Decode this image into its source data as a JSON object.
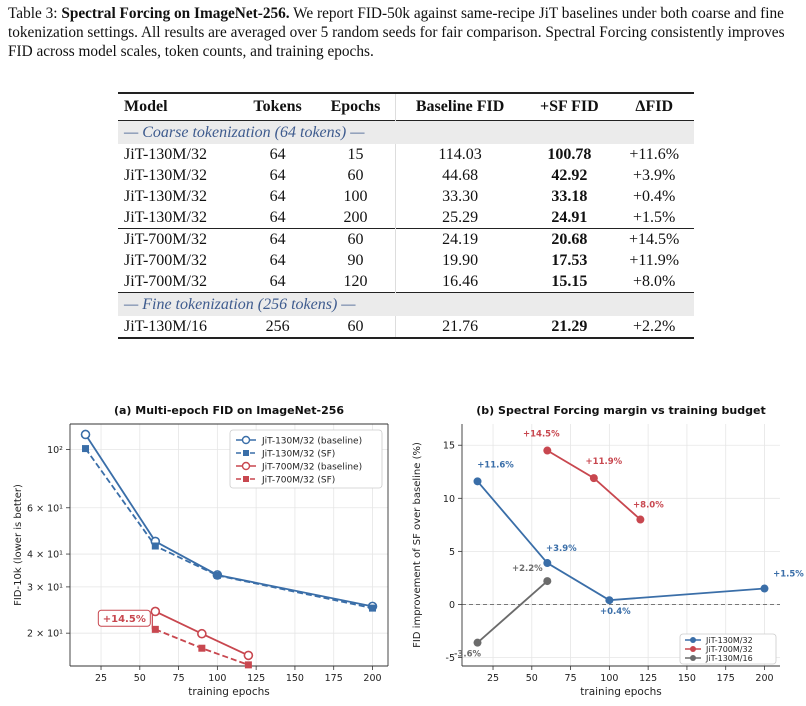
{
  "caption": {
    "label": "Table 3:",
    "title": "Spectral Forcing on ImageNet-256.",
    "body": "We report FID-50k against same-recipe JiT baselines under both coarse and fine tokenization settings. All results are averaged over 5 random seeds for fair comparison. Spectral Forcing consistently improves FID across model scales, token counts, and training epochs."
  },
  "table": {
    "headers": [
      "Model",
      "Tokens",
      "Epochs",
      "Baseline FID",
      "+SF FID",
      "ΔFID"
    ],
    "section_coarse": "— Coarse tokenization (64 tokens) —",
    "section_fine": "— Fine tokenization (256 tokens) —",
    "coarse_a": [
      [
        "JiT-130M/32",
        "64",
        "15",
        "114.03",
        "100.78",
        "+11.6%"
      ],
      [
        "JiT-130M/32",
        "64",
        "60",
        "44.68",
        "42.92",
        "+3.9%"
      ],
      [
        "JiT-130M/32",
        "64",
        "100",
        "33.30",
        "33.18",
        "+0.4%"
      ],
      [
        "JiT-130M/32",
        "64",
        "200",
        "25.29",
        "24.91",
        "+1.5%"
      ]
    ],
    "coarse_b": [
      [
        "JiT-700M/32",
        "64",
        "60",
        "24.19",
        "20.68",
        "+14.5%"
      ],
      [
        "JiT-700M/32",
        "64",
        "90",
        "19.90",
        "17.53",
        "+11.9%"
      ],
      [
        "JiT-700M/32",
        "64",
        "120",
        "16.46",
        "15.15",
        "+8.0%"
      ]
    ],
    "fine": [
      [
        "JiT-130M/16",
        "256",
        "60",
        "21.76",
        "21.29",
        "+2.2%"
      ]
    ]
  },
  "chart_data": [
    {
      "type": "line",
      "title": "(a) Multi-epoch FID on ImageNet-256",
      "xlabel": "training epochs",
      "ylabel": "FID-10k (lower is better)",
      "yscale": "log",
      "xlim": [
        5,
        210
      ],
      "ylim": [
        15,
        125
      ],
      "xticks": [
        25,
        50,
        75,
        100,
        125,
        150,
        175,
        200
      ],
      "yticks": [
        {
          "value": 100,
          "label": "10²"
        },
        {
          "value": 60,
          "label": "6 × 10¹"
        },
        {
          "value": 40,
          "label": "4 × 10¹"
        },
        {
          "value": 30,
          "label": "3 × 10¹"
        },
        {
          "value": 20,
          "label": "2 × 10¹"
        }
      ],
      "grid": true,
      "legend": "top-right",
      "series": [
        {
          "name": "JiT-130M/32 (baseline)",
          "color": "#3a6ea8",
          "marker": "circle-open",
          "dash": false,
          "x": [
            15,
            60,
            100,
            200
          ],
          "y": [
            114.03,
            44.68,
            33.3,
            25.29
          ]
        },
        {
          "name": "JiT-130M/32 (SF)",
          "color": "#3a6ea8",
          "marker": "square",
          "dash": true,
          "x": [
            15,
            60,
            100,
            200
          ],
          "y": [
            100.78,
            42.92,
            33.18,
            24.91
          ]
        },
        {
          "name": "JiT-700M/32 (baseline)",
          "color": "#c8474f",
          "marker": "circle-open",
          "dash": false,
          "x": [
            60,
            90,
            120
          ],
          "y": [
            24.19,
            19.9,
            16.46
          ]
        },
        {
          "name": "JiT-700M/32 (SF)",
          "color": "#c8474f",
          "marker": "square",
          "dash": true,
          "x": [
            60,
            90,
            120
          ],
          "y": [
            20.68,
            17.53,
            15.15
          ]
        }
      ],
      "annotation": {
        "text": "+14.5%",
        "x": 60,
        "y_from": 24.19,
        "y_to": 20.68
      }
    },
    {
      "type": "line",
      "title": "(b) Spectral Forcing margin vs training budget",
      "xlabel": "training epochs",
      "ylabel": "FID improvement of SF over baseline (%)",
      "xlim": [
        5,
        210
      ],
      "ylim": [
        -5.8,
        17
      ],
      "xticks": [
        25,
        50,
        75,
        100,
        125,
        150,
        175,
        200
      ],
      "yticks": [
        -5,
        0,
        5,
        10,
        15
      ],
      "grid": true,
      "legend": "bottom-right",
      "reference_line": 0,
      "series": [
        {
          "name": "JiT-130M/32",
          "color": "#3a6ea8",
          "x": [
            15,
            60,
            100,
            200
          ],
          "y": [
            11.6,
            3.9,
            0.4,
            1.5
          ],
          "labels": [
            "+11.6%",
            "+3.9%",
            "+0.4%",
            "+1.5%"
          ]
        },
        {
          "name": "JiT-700M/32",
          "color": "#c8474f",
          "x": [
            60,
            90,
            120
          ],
          "y": [
            14.5,
            11.9,
            8.0
          ],
          "labels": [
            "+14.5%",
            "+11.9%",
            "+8.0%"
          ]
        },
        {
          "name": "JiT-130M/16",
          "color": "#6b6b6b",
          "x": [
            15,
            60
          ],
          "y": [
            -3.6,
            2.2
          ],
          "labels": [
            "-3.6%",
            "+2.2%"
          ]
        }
      ]
    }
  ]
}
